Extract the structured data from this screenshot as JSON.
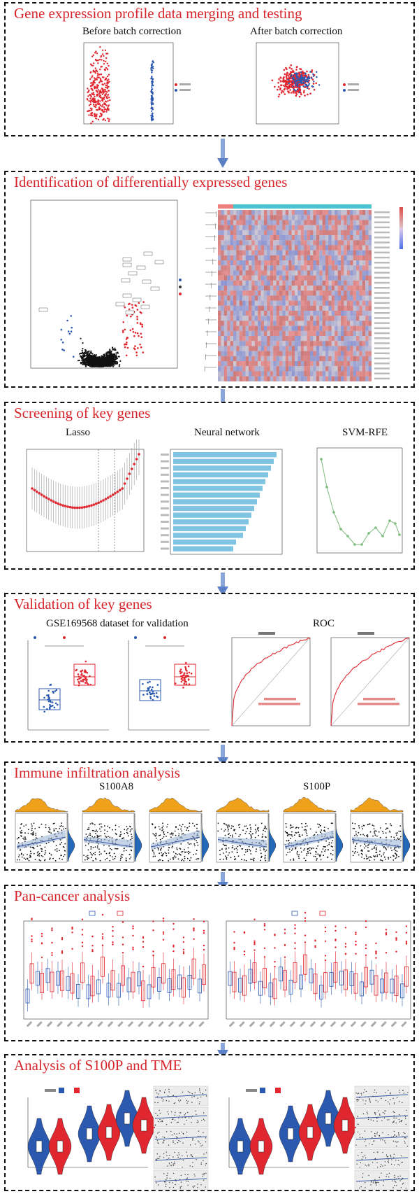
{
  "panels": {
    "p1": {
      "title": "Gene expression profile data merging and testing",
      "sub_left": "Before batch correction",
      "sub_right": "After batch correction"
    },
    "p2": {
      "title": "Identification of differentially expressed genes"
    },
    "p3": {
      "title": "Screening of key genes",
      "sub1": "Lasso",
      "sub2": "Neural network",
      "sub3": "SVM-RFE"
    },
    "p4": {
      "title": "Validation of key genes",
      "sub1": "GSE169568 dataset for validation",
      "sub2": "ROC"
    },
    "p5": {
      "title": "Immune infiltration analysis",
      "sub1": "S100A8",
      "sub2": "S100P"
    },
    "p6": {
      "title": "Pan-cancer analysis"
    },
    "p7": {
      "title": "Analysis of S100P and TME"
    }
  },
  "colors": {
    "title_red": "#d6262b",
    "series_red": "#e0262e",
    "series_blue": "#2b59b0",
    "arrow": "#8aa6d8",
    "neural_bar": "#7fc4e0",
    "density_orange": "#f0a11b",
    "density_blue": "#2668b8"
  }
}
